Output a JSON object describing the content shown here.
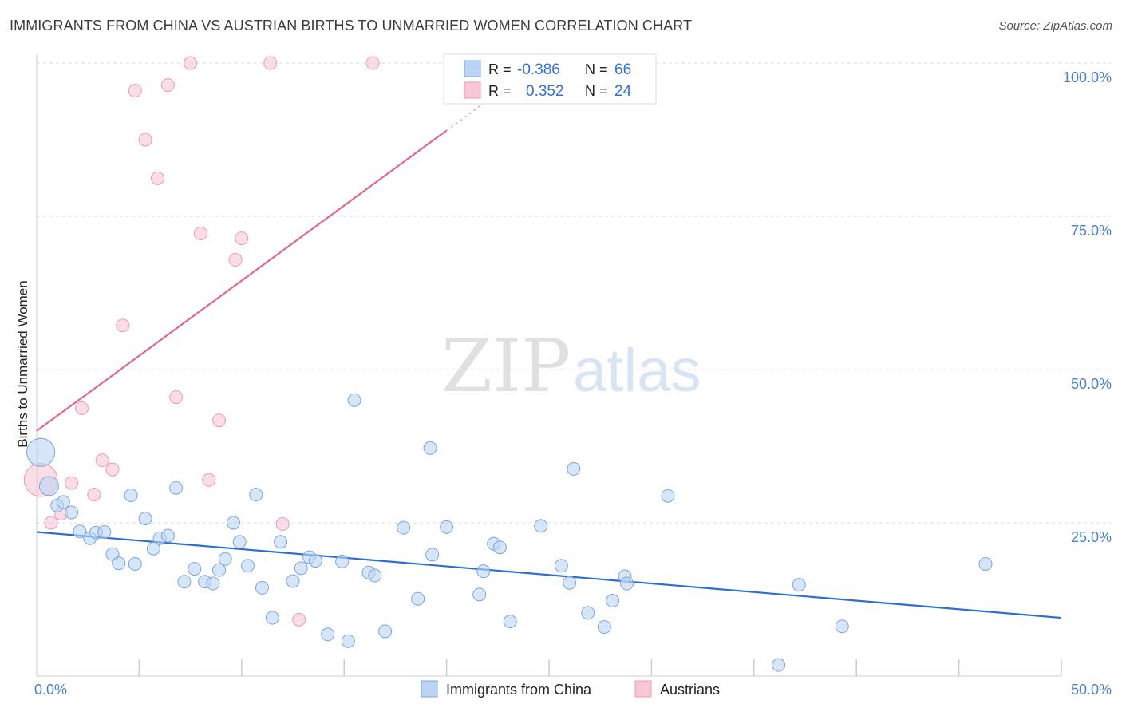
{
  "title": "IMMIGRANTS FROM CHINA VS AUSTRIAN BIRTHS TO UNMARRIED WOMEN CORRELATION CHART",
  "source": "Source: ZipAtlas.com",
  "watermark": {
    "zip": "ZIP",
    "atlas": "atlas"
  },
  "colors": {
    "blue_fill": "#bcd4f4",
    "blue_stroke": "#7aa6e0",
    "blue_line": "#2a6fd4",
    "pink_fill": "#f9c6d6",
    "pink_stroke": "#ee9ab4",
    "pink_line": "#e06890",
    "grid": "#dddddd",
    "axis": "#cccccc",
    "tick_text": "#4a7fd0"
  },
  "stats_box": {
    "rows": [
      {
        "r_label": "R = ",
        "r_value": "-0.386",
        "n_label": "N = ",
        "n_value": "66",
        "series": "blue"
      },
      {
        "r_label": "R = ",
        "r_value": "0.352",
        "n_label": "N = ",
        "n_value": "24",
        "series": "pink"
      }
    ]
  },
  "chart_data": {
    "type": "scatter",
    "xlabel": "",
    "ylabel": "Births to Unmarried Women",
    "xlim": [
      0,
      50
    ],
    "ylim": [
      0,
      100
    ],
    "x_tick_labels": [
      "0.0%",
      "50.0%"
    ],
    "y_tick_labels": [
      "100.0%",
      "75.0%",
      "50.0%",
      "25.0%"
    ],
    "y_ticks": [
      100,
      75,
      50,
      25
    ],
    "grid": true,
    "legend_position": "bottom-center",
    "series": [
      {
        "name": "Immigrants from China",
        "color": "blue",
        "trend": {
          "x": [
            0,
            50
          ],
          "y": [
            23.5,
            9.5
          ]
        },
        "points": [
          [
            0.2,
            36.5,
            2.2
          ],
          [
            0.6,
            31.0,
            1.5
          ],
          [
            1.0,
            27.8,
            1
          ],
          [
            1.3,
            28.4,
            1
          ],
          [
            1.7,
            26.7,
            1
          ],
          [
            2.1,
            23.6,
            1
          ],
          [
            2.6,
            22.5,
            1
          ],
          [
            2.9,
            23.4,
            1
          ],
          [
            3.3,
            23.5,
            1
          ],
          [
            3.7,
            19.9,
            1
          ],
          [
            4.0,
            18.4,
            1
          ],
          [
            4.8,
            18.3,
            1
          ],
          [
            4.6,
            29.5,
            1
          ],
          [
            5.3,
            25.7,
            1
          ],
          [
            5.7,
            20.8,
            1
          ],
          [
            6.0,
            22.5,
            1
          ],
          [
            6.4,
            22.9,
            1
          ],
          [
            6.8,
            30.7,
            1
          ],
          [
            7.2,
            15.4,
            1
          ],
          [
            7.7,
            17.5,
            1
          ],
          [
            8.2,
            15.4,
            1
          ],
          [
            8.6,
            15.1,
            1
          ],
          [
            8.9,
            17.3,
            1
          ],
          [
            9.2,
            19.1,
            1
          ],
          [
            9.6,
            25.0,
            1
          ],
          [
            9.9,
            21.9,
            1
          ],
          [
            10.3,
            18.0,
            1
          ],
          [
            10.7,
            29.6,
            1
          ],
          [
            11.0,
            14.4,
            1
          ],
          [
            11.5,
            9.5,
            1
          ],
          [
            11.9,
            21.9,
            1
          ],
          [
            12.5,
            15.5,
            1
          ],
          [
            12.9,
            17.6,
            1
          ],
          [
            13.3,
            19.4,
            1
          ],
          [
            13.6,
            18.8,
            1
          ],
          [
            14.2,
            6.8,
            1
          ],
          [
            14.9,
            18.7,
            1
          ],
          [
            15.2,
            5.7,
            1
          ],
          [
            15.5,
            45.0,
            1
          ],
          [
            16.2,
            16.9,
            1
          ],
          [
            16.5,
            16.4,
            1
          ],
          [
            17.0,
            7.3,
            1
          ],
          [
            17.9,
            24.2,
            1
          ],
          [
            18.6,
            12.6,
            1
          ],
          [
            19.2,
            37.2,
            1
          ],
          [
            19.3,
            19.8,
            1
          ],
          [
            20.0,
            24.3,
            1
          ],
          [
            21.6,
            13.3,
            1
          ],
          [
            21.8,
            17.1,
            1
          ],
          [
            22.3,
            21.6,
            1
          ],
          [
            22.6,
            21.0,
            1
          ],
          [
            23.1,
            8.9,
            1
          ],
          [
            24.6,
            24.5,
            1
          ],
          [
            25.6,
            18.0,
            1
          ],
          [
            26.0,
            15.2,
            1
          ],
          [
            26.2,
            33.8,
            1
          ],
          [
            26.9,
            10.3,
            1
          ],
          [
            27.7,
            8.0,
            1
          ],
          [
            28.1,
            12.3,
            1
          ],
          [
            28.7,
            16.3,
            1
          ],
          [
            28.8,
            15.1,
            1
          ],
          [
            30.8,
            29.4,
            1
          ],
          [
            36.2,
            1.8,
            1
          ],
          [
            37.2,
            14.9,
            1
          ],
          [
            39.3,
            8.1,
            1
          ],
          [
            46.3,
            18.3,
            1
          ]
        ]
      },
      {
        "name": "Austrians",
        "color": "pink",
        "trend": {
          "x": [
            0,
            20
          ],
          "y": [
            40,
            89
          ]
        },
        "points": [
          [
            0.2,
            32.0,
            2.6
          ],
          [
            0.7,
            25.0,
            1
          ],
          [
            1.2,
            26.5,
            1
          ],
          [
            1.7,
            31.5,
            1
          ],
          [
            2.2,
            43.7,
            1
          ],
          [
            2.8,
            29.6,
            1
          ],
          [
            3.2,
            35.2,
            1
          ],
          [
            3.7,
            33.7,
            1
          ],
          [
            4.2,
            57.2,
            1
          ],
          [
            4.8,
            95.5,
            1
          ],
          [
            5.3,
            87.5,
            1
          ],
          [
            5.9,
            81.2,
            1
          ],
          [
            6.4,
            96.4,
            1
          ],
          [
            6.8,
            45.5,
            1
          ],
          [
            7.5,
            100.0,
            1
          ],
          [
            8.0,
            72.2,
            1
          ],
          [
            8.4,
            32.0,
            1
          ],
          [
            8.9,
            41.7,
            1
          ],
          [
            10.0,
            71.4,
            1
          ],
          [
            9.7,
            67.9,
            1
          ],
          [
            11.4,
            100.0,
            1
          ],
          [
            12.0,
            24.8,
            1
          ],
          [
            12.8,
            9.2,
            1
          ],
          [
            16.4,
            100.0,
            1
          ]
        ]
      }
    ]
  }
}
